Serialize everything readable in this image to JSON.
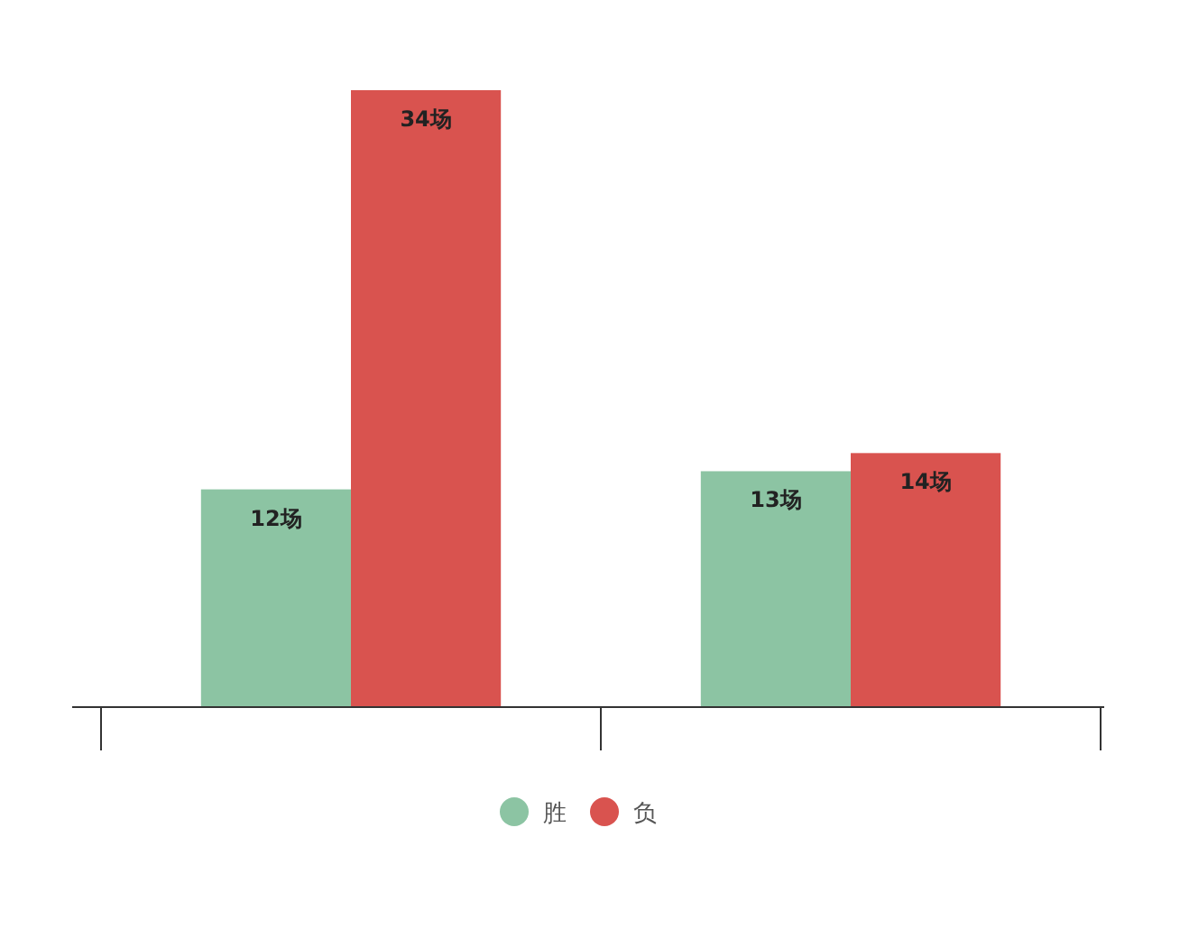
{
  "chart_data": {
    "type": "bar",
    "categories": [
      null,
      null
    ],
    "series": [
      {
        "name": "胜",
        "color": "#8cc4a3",
        "values": [
          12,
          13
        ],
        "value_labels": [
          "12场",
          "13场"
        ]
      },
      {
        "name": "负",
        "color": "#d9534f",
        "values": [
          34,
          14
        ],
        "value_labels": [
          "34场",
          "14场"
        ]
      }
    ],
    "legend": "bottom"
  }
}
